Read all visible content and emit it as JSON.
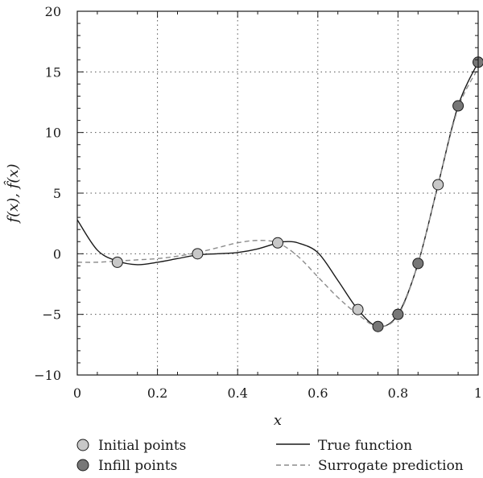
{
  "chart_data": {
    "type": "line",
    "xlabel": "x",
    "ylabel": "f(x), f̂(x)",
    "xlim": [
      0,
      1
    ],
    "ylim": [
      -10,
      20
    ],
    "x_ticks": [
      0,
      0.2,
      0.4,
      0.6,
      0.8,
      1
    ],
    "x_tick_labels": [
      "0",
      "0.2",
      "0.4",
      "0.6",
      "0.8",
      "1"
    ],
    "y_ticks": [
      -10,
      -5,
      0,
      5,
      10,
      15,
      20
    ],
    "y_tick_labels": [
      "−10",
      "−5",
      "0",
      "5",
      "10",
      "15",
      "20"
    ],
    "grid": true,
    "legend_position": "bottom",
    "series": [
      {
        "name": "True function",
        "style": "solid",
        "color": "#1a1a1a",
        "x": [
          0,
          0.05,
          0.1,
          0.15,
          0.2,
          0.25,
          0.3,
          0.35,
          0.4,
          0.45,
          0.5,
          0.52,
          0.55,
          0.6,
          0.65,
          0.7,
          0.75,
          0.8,
          0.85,
          0.9,
          0.95,
          1.0
        ],
        "y": [
          2.8,
          0.3,
          -0.6,
          -0.9,
          -0.7,
          -0.4,
          -0.1,
          0.0,
          0.1,
          0.4,
          0.9,
          1.0,
          0.9,
          0.1,
          -2.2,
          -4.6,
          -6.0,
          -5.0,
          -0.8,
          5.7,
          12.2,
          15.8
        ]
      },
      {
        "name": "Surrogate prediction",
        "style": "dashed",
        "color": "#8c8c8c",
        "x": [
          0,
          0.05,
          0.1,
          0.15,
          0.2,
          0.25,
          0.3,
          0.35,
          0.4,
          0.45,
          0.5,
          0.55,
          0.6,
          0.65,
          0.7,
          0.75,
          0.8,
          0.85,
          0.9,
          0.95,
          1.0
        ],
        "y": [
          -0.7,
          -0.7,
          -0.6,
          -0.5,
          -0.4,
          -0.2,
          0.1,
          0.5,
          0.9,
          1.1,
          0.9,
          -0.2,
          -1.9,
          -3.6,
          -5.0,
          -6.0,
          -5.1,
          -0.8,
          5.7,
          12.0,
          15.3
        ]
      }
    ],
    "points": [
      {
        "name": "Initial points",
        "color": "#c8c8c8",
        "x": [
          0.1,
          0.3,
          0.5,
          0.7,
          0.9
        ],
        "y": [
          -0.7,
          0.0,
          0.9,
          -4.6,
          5.7
        ]
      },
      {
        "name": "Infill points",
        "color": "#777777",
        "x": [
          0.75,
          0.8,
          0.85,
          0.95,
          1.0
        ],
        "y": [
          -6.0,
          -5.0,
          -0.8,
          12.2,
          15.8
        ]
      }
    ],
    "legend": {
      "initial": "Initial points",
      "infill": "Infill points",
      "true": "True function",
      "surrogate": "Surrogate prediction"
    }
  }
}
